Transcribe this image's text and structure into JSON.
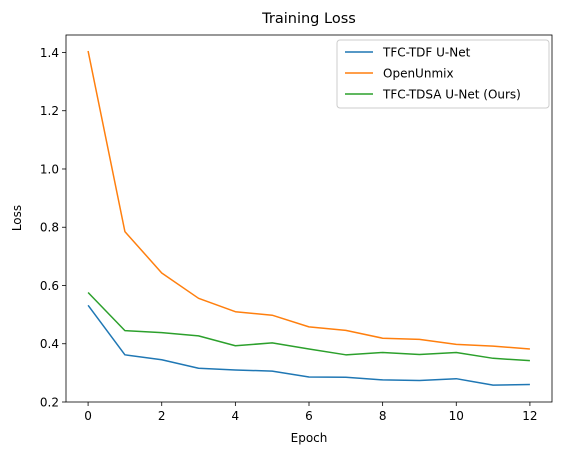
{
  "chart_data": {
    "type": "line",
    "title": "Training Loss",
    "xlabel": "Epoch",
    "ylabel": "Loss",
    "xlim": [
      -0.6,
      12.6
    ],
    "ylim": [
      0.2,
      1.46
    ],
    "xticks": [
      0,
      2,
      4,
      6,
      8,
      10,
      12
    ],
    "yticks": [
      0.2,
      0.4,
      0.6,
      0.8,
      1.0,
      1.2,
      1.4
    ],
    "ytick_labels": [
      "0.2",
      "0.4",
      "0.6",
      "0.8",
      "1.0",
      "1.2",
      "1.4"
    ],
    "grid": false,
    "legend_position": "top-right",
    "x": [
      0,
      1,
      2,
      3,
      4,
      5,
      6,
      7,
      8,
      9,
      10,
      11,
      12
    ],
    "series": [
      {
        "name": "TFC-TDF U-Net",
        "color": "#1f77b4",
        "values": [
          0.532,
          0.362,
          0.345,
          0.316,
          0.31,
          0.306,
          0.286,
          0.285,
          0.276,
          0.274,
          0.28,
          0.258,
          0.26
        ]
      },
      {
        "name": "OpenUnmix",
        "color": "#ff7f0e",
        "values": [
          1.405,
          0.785,
          0.643,
          0.556,
          0.51,
          0.498,
          0.458,
          0.446,
          0.419,
          0.415,
          0.398,
          0.392,
          0.382
        ]
      },
      {
        "name": "TFC-TDSA U-Net (Ours)",
        "color": "#2ca02c",
        "values": [
          0.576,
          0.445,
          0.438,
          0.427,
          0.393,
          0.403,
          0.382,
          0.362,
          0.37,
          0.363,
          0.37,
          0.35,
          0.342
        ]
      }
    ]
  }
}
